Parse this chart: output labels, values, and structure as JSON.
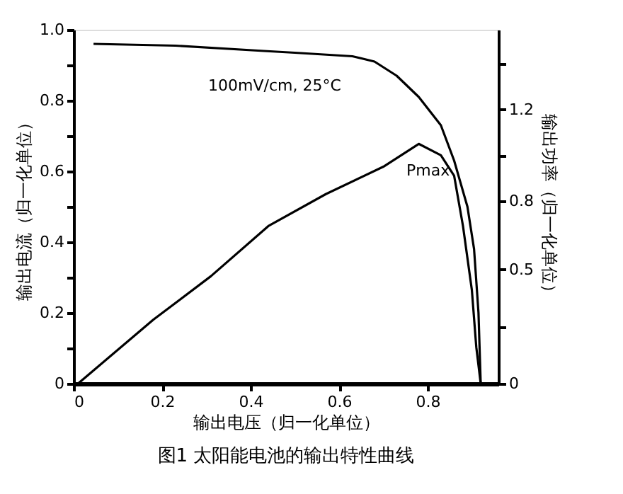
{
  "chart_data": {
    "type": "line",
    "title": "图1 太阳能电池的输出特性曲线",
    "xlabel": "输出电压（归一化单位）",
    "ylabel": "输出电流（归一化单位）",
    "y2label": "输出功率（归一化单位）",
    "annotations": [
      "100mV/cm, 25°C",
      "Pmax"
    ],
    "xlim": [
      0,
      0.96
    ],
    "xticks": [
      0,
      0.2,
      0.4,
      0.6,
      0.8
    ],
    "ylim": [
      0,
      1.0
    ],
    "yticks": [
      0,
      {
        "value": 0.1,
        "label": null
      },
      0.2,
      {
        "value": 0.3,
        "label": null
      },
      0.4,
      {
        "value": 0.5,
        "label": null
      },
      0.6,
      {
        "value": 0.7,
        "label": null
      },
      0.8,
      {
        "value": 0.9,
        "label": null
      },
      {
        "value": 1,
        "label": "1.0"
      }
    ],
    "y2lim": [
      0,
      1.55
    ],
    "y2ticks": [
      0,
      {
        "value": 0.25,
        "label": null
      },
      0.5,
      0.8,
      {
        "value": 1.0,
        "label": null
      },
      1.2,
      {
        "value": 1.4,
        "label": null
      }
    ],
    "grid": false,
    "line_style": "solid",
    "marker": "none",
    "series": [
      {
        "color": "#000000",
        "x": [
          0.045,
          0.23,
          0.43,
          0.5,
          0.63,
          0.68,
          0.73,
          0.78,
          0.83,
          0.86,
          0.89,
          0.905,
          0.915,
          0.92
        ],
        "values": [
          0.96,
          0.955,
          0.94,
          0.935,
          0.925,
          0.91,
          0.87,
          0.81,
          0.73,
          0.63,
          0.5,
          0.38,
          0.2,
          0
        ]
      },
      {
        "color": "#000000",
        "axis": "y2",
        "x": [
          0.01,
          0.18,
          0.31,
          0.44,
          0.57,
          0.7,
          0.78,
          0.83,
          0.86,
          0.88,
          0.9,
          0.91,
          0.92
        ],
        "values": [
          0,
          0.28,
          0.47,
          0.69,
          0.83,
          0.95,
          1.05,
          1.0,
          0.91,
          0.69,
          0.41,
          0.16,
          0
        ]
      }
    ]
  }
}
